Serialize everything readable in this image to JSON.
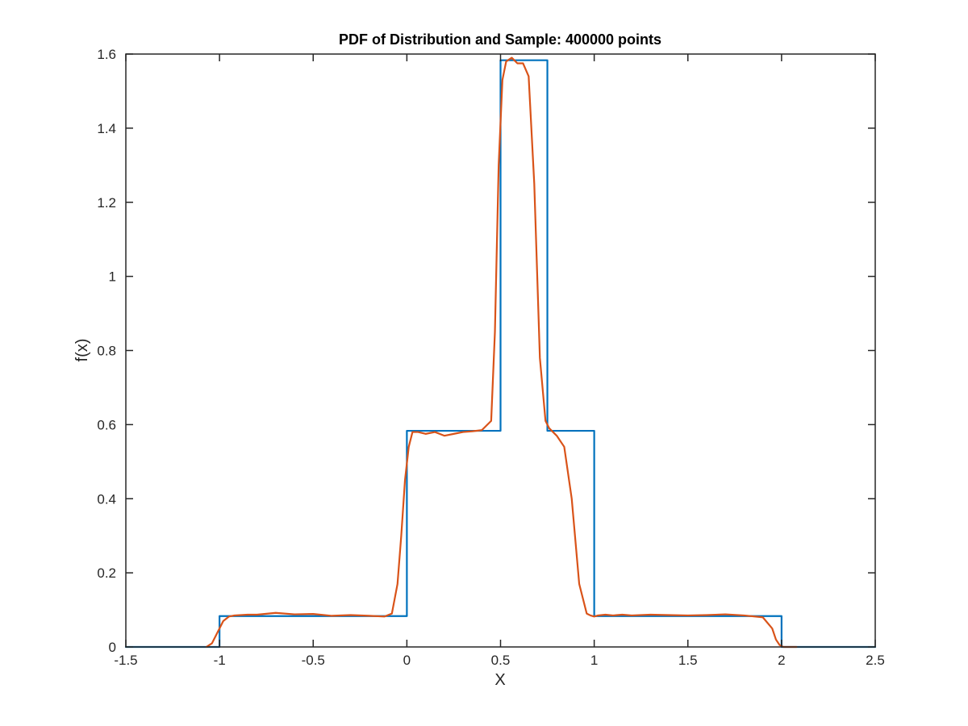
{
  "chart_data": {
    "type": "line",
    "title": "PDF of Distribution and Sample: 400000 points",
    "xlabel": "X",
    "ylabel": "f(x)",
    "xlim": [
      -1.5,
      2.5
    ],
    "ylim": [
      0,
      1.6
    ],
    "xticks": [
      -1.5,
      -1,
      -0.5,
      0,
      0.5,
      1,
      1.5,
      2,
      2.5
    ],
    "xtick_labels": [
      "-1.5",
      "-1",
      "-0.5",
      "0",
      "0.5",
      "1",
      "1.5",
      "2",
      "2.5"
    ],
    "yticks": [
      0,
      0.2,
      0.4,
      0.6,
      0.8,
      1,
      1.2,
      1.4,
      1.6
    ],
    "ytick_labels": [
      "0",
      "0.2",
      "0.4",
      "0.6",
      "0.8",
      "1",
      "1.2",
      "1.4",
      "1.6"
    ],
    "grid": false,
    "box": true,
    "series": [
      {
        "color": "#0072BD",
        "x": [
          -1.5,
          -1.0,
          -1.0,
          0.0,
          0.0,
          0.5,
          0.5,
          0.75,
          0.75,
          1.0,
          1.0,
          2.0,
          2.0,
          2.5
        ],
        "y": [
          0,
          0,
          0.0833,
          0.0833,
          0.5833,
          0.5833,
          1.5833,
          1.5833,
          0.5833,
          0.5833,
          0.0833,
          0.0833,
          0,
          0
        ]
      },
      {
        "color": "#D95319",
        "x": [
          -1.07,
          -1.04,
          -1.01,
          -0.98,
          -0.95,
          -0.92,
          -0.85,
          -0.8,
          -0.7,
          -0.6,
          -0.5,
          -0.4,
          -0.3,
          -0.2,
          -0.12,
          -0.08,
          -0.05,
          -0.03,
          -0.01,
          0.01,
          0.03,
          0.06,
          0.1,
          0.15,
          0.2,
          0.25,
          0.3,
          0.35,
          0.4,
          0.45,
          0.47,
          0.49,
          0.51,
          0.53,
          0.56,
          0.59,
          0.62,
          0.65,
          0.68,
          0.71,
          0.74,
          0.76,
          0.78,
          0.8,
          0.84,
          0.88,
          0.92,
          0.96,
          0.98,
          1.0,
          1.02,
          1.04,
          1.06,
          1.1,
          1.15,
          1.2,
          1.3,
          1.4,
          1.5,
          1.6,
          1.7,
          1.8,
          1.9,
          1.95,
          1.97,
          1.99,
          2.01,
          2.03,
          2.05,
          2.08
        ],
        "y": [
          0.0,
          0.01,
          0.04,
          0.07,
          0.082,
          0.085,
          0.087,
          0.087,
          0.092,
          0.088,
          0.089,
          0.084,
          0.086,
          0.084,
          0.082,
          0.09,
          0.17,
          0.3,
          0.45,
          0.54,
          0.58,
          0.58,
          0.575,
          0.58,
          0.57,
          0.575,
          0.58,
          0.582,
          0.585,
          0.61,
          0.85,
          1.3,
          1.53,
          1.58,
          1.59,
          1.575,
          1.575,
          1.54,
          1.25,
          0.78,
          0.61,
          0.59,
          0.58,
          0.57,
          0.54,
          0.4,
          0.17,
          0.09,
          0.085,
          0.082,
          0.085,
          0.086,
          0.087,
          0.085,
          0.087,
          0.085,
          0.087,
          0.086,
          0.085,
          0.086,
          0.088,
          0.085,
          0.08,
          0.05,
          0.02,
          0.005,
          0.0,
          0.0,
          0.0,
          0.0
        ]
      }
    ]
  }
}
